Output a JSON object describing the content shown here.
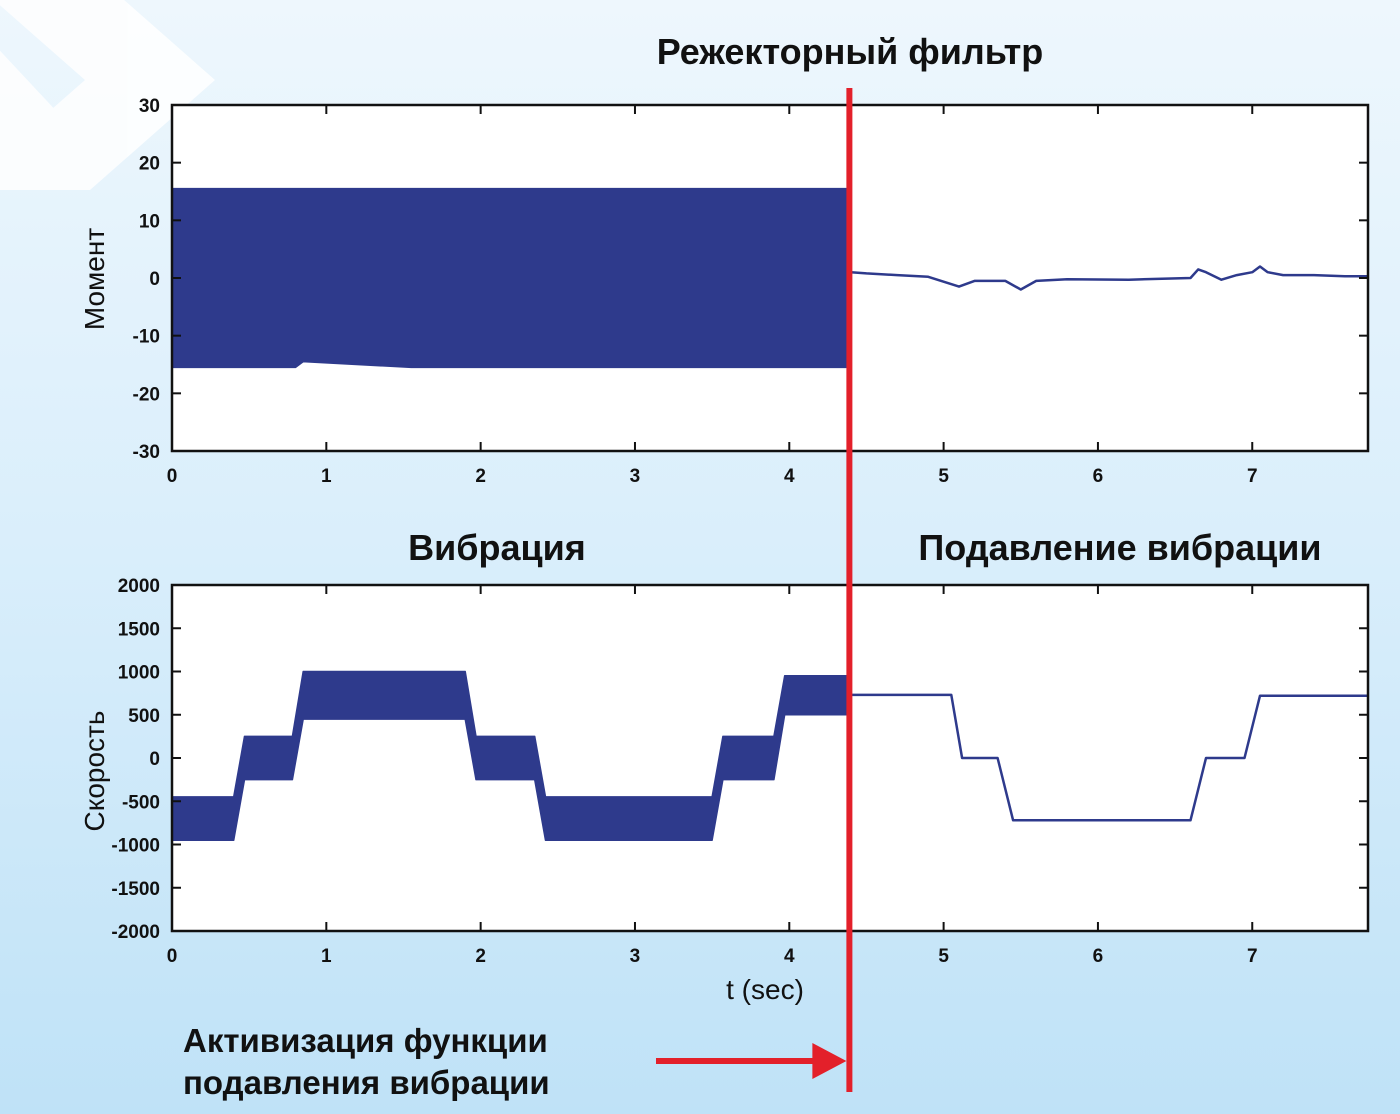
{
  "colors": {
    "series": "#2e3a8c",
    "marker": "#e3202a",
    "decor": "#ffffff",
    "axis": "#111111"
  },
  "chart_data": [
    {
      "type": "line",
      "title": "Режекторный фильтр",
      "ylabel": "Момент",
      "xlabel": "",
      "xlim": [
        0,
        7.75
      ],
      "ylim": [
        -30,
        30
      ],
      "xticks": [
        "0",
        "1",
        "2",
        "3",
        "4",
        "5",
        "6",
        "7"
      ],
      "yticks": [
        "30",
        "20",
        "10",
        "0",
        "-10",
        "-20",
        "-30"
      ],
      "series": [
        {
          "style": "oscillation band before activation",
          "x": [
            0,
            0.8,
            0.85,
            1.55,
            1.6,
            2.8,
            2.85,
            4.37
          ],
          "y_upper": [
            15.5,
            15.5,
            15.5,
            15.5,
            15.5,
            15.5,
            15.5,
            15.5
          ],
          "y_lower": [
            -15.5,
            -15.5,
            -14.5,
            -15.5,
            -15.5,
            -15.5,
            -15.5,
            -15.5
          ]
        },
        {
          "style": "line after activation",
          "x": [
            4.37,
            4.4,
            4.5,
            4.7,
            4.9,
            5.1,
            5.2,
            5.4,
            5.5,
            5.6,
            5.8,
            6.2,
            6.6,
            6.65,
            6.7,
            6.8,
            6.9,
            7.0,
            7.05,
            7.1,
            7.2,
            7.4,
            7.6,
            7.75
          ],
          "y": [
            -3,
            1,
            0.8,
            0.5,
            0.2,
            -1.5,
            -0.5,
            -0.5,
            -2,
            -0.5,
            -0.2,
            -0.3,
            0,
            1.5,
            1,
            -0.3,
            0.5,
            1,
            2,
            1,
            0.5,
            0.5,
            0.3,
            0.3
          ]
        }
      ]
    },
    {
      "type": "line",
      "title_left": "Вибрация",
      "title_right": "Подавление вибрации",
      "ylabel": "Скорость",
      "xlabel": "t (sec)",
      "xlim": [
        0,
        7.75
      ],
      "ylim": [
        -2000,
        2000
      ],
      "xticks": [
        "0",
        "1",
        "2",
        "3",
        "4",
        "5",
        "6",
        "7"
      ],
      "yticks": [
        "2000",
        "1500",
        "1000",
        "500",
        "0",
        "-500",
        "-1000",
        "-1500",
        "-2000"
      ],
      "series": [
        {
          "style": "oscillation band before activation",
          "x": [
            0,
            0.4,
            0.47,
            0.78,
            0.85,
            1.9,
            1.97,
            2.35,
            2.42,
            3.5,
            3.57,
            3.9,
            3.97,
            4.37
          ],
          "y_upper": [
            -450,
            -450,
            250,
            250,
            1000,
            1000,
            250,
            250,
            -450,
            -450,
            250,
            250,
            950,
            950
          ],
          "y_lower": [
            -950,
            -950,
            -250,
            -250,
            450,
            450,
            -250,
            -250,
            -950,
            -950,
            -250,
            -250,
            500,
            500
          ]
        },
        {
          "style": "line after activation",
          "x": [
            4.37,
            5.05,
            5.12,
            5.35,
            5.45,
            6.6,
            6.7,
            6.95,
            7.05,
            7.75
          ],
          "y": [
            730,
            730,
            0,
            0,
            -720,
            -720,
            0,
            0,
            720,
            720
          ]
        }
      ]
    }
  ],
  "annotation": {
    "activation_x": 4.37,
    "line1": "Активизация функции",
    "line2": "подавления вибрации"
  }
}
